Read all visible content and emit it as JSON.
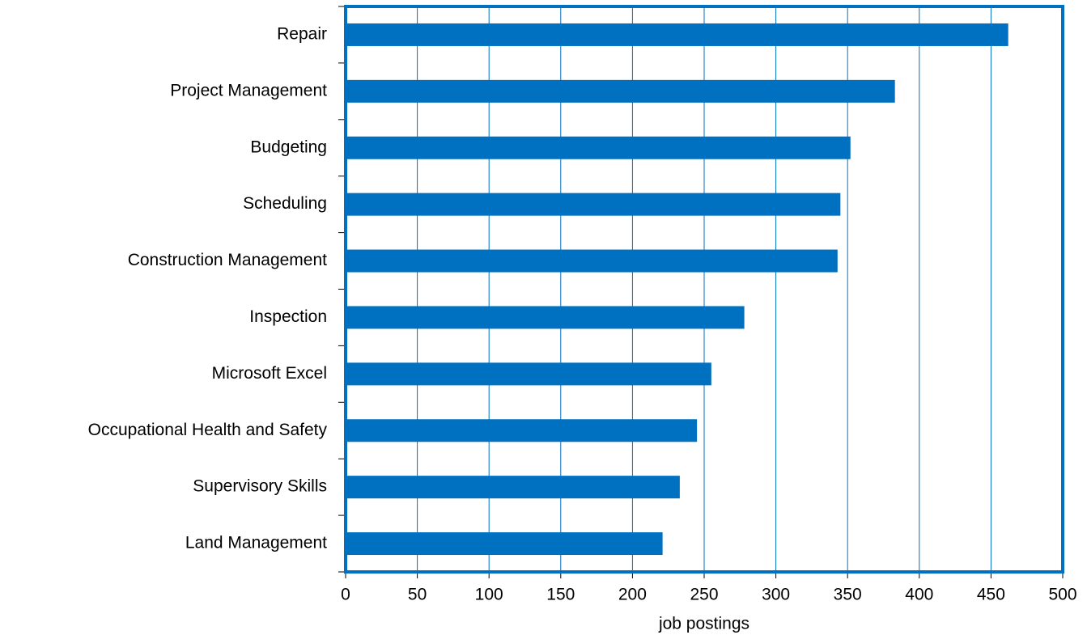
{
  "chart_data": {
    "type": "barh",
    "categories": [
      "Repair",
      "Project Management",
      "Budgeting",
      "Scheduling",
      "Construction Management",
      "Inspection",
      "Microsoft Excel",
      "Occupational Health and Safety",
      "Supervisory Skills",
      "Land Management"
    ],
    "values": [
      462,
      383,
      352,
      345,
      343,
      278,
      255,
      245,
      233,
      221
    ],
    "color": "#0070c0",
    "x_label": "job postings",
    "xlim": [
      0,
      500
    ],
    "xticks": [
      0,
      50,
      100,
      150,
      200,
      250,
      300,
      350,
      400,
      450,
      500
    ],
    "grid": true
  }
}
